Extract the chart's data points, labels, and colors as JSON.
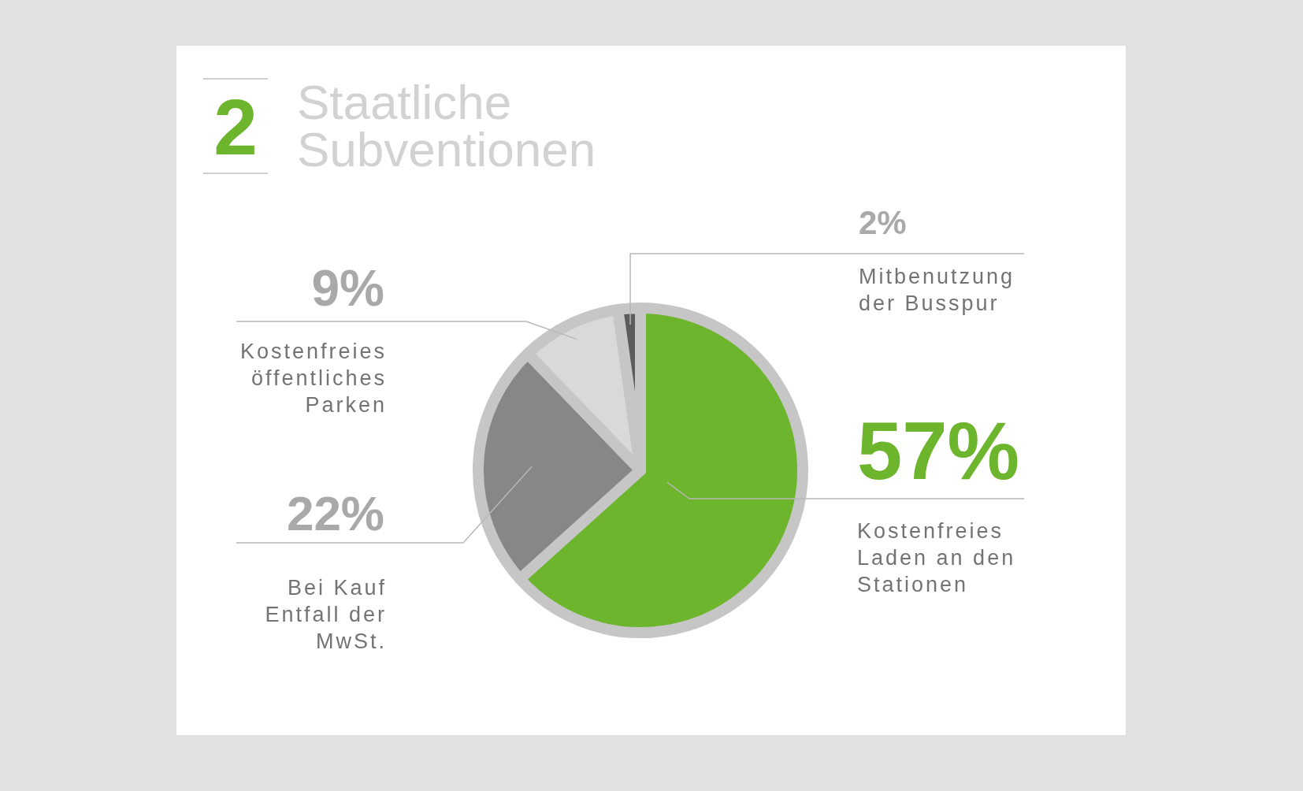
{
  "chart_data": {
    "type": "pie",
    "title": "Staatliche Subventionen",
    "annotations": [
      "2"
    ],
    "categories": [
      "Kostenfreies Laden an den Stationen",
      "Bei Kauf Entfall der MwSt.",
      "Kostenfreies öffentliches Parken",
      "Mitbenutzung der Busspur"
    ],
    "values": [
      57,
      22,
      9,
      2
    ],
    "colors": [
      "#6cb52d",
      "#878787",
      "#d9d9d9",
      "#5c5c5c"
    ],
    "value_labels": [
      "57%",
      "22%",
      "9%",
      "2%"
    ]
  }
}
